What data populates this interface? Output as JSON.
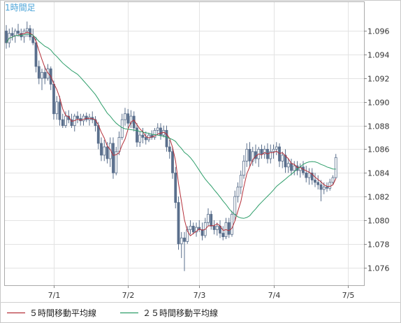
{
  "chart_data": {
    "type": "candlestick",
    "title": "1時間足",
    "xlabel": "",
    "ylabel": "",
    "ylim": [
      1.0745,
      1.0985
    ],
    "grid": true,
    "legend_position": "bottom-left",
    "x_ticks": [
      "7/1",
      "7/2",
      "7/3",
      "7/4",
      "7/5"
    ],
    "y_ticks": [
      "1.076",
      "1.078",
      "1.080",
      "1.082",
      "1.084",
      "1.086",
      "1.088",
      "1.090",
      "1.092",
      "1.094",
      "1.096"
    ],
    "y_tick_values": [
      1.076,
      1.078,
      1.08,
      1.082,
      1.084,
      1.086,
      1.088,
      1.09,
      1.092,
      1.094,
      1.096
    ],
    "candles": [
      [
        1.096,
        1.0965,
        1.0945,
        1.095
      ],
      [
        1.095,
        1.0962,
        1.0946,
        1.0958
      ],
      [
        1.0958,
        1.0963,
        1.0952,
        1.0956
      ],
      [
        1.0956,
        1.0962,
        1.095,
        1.096
      ],
      [
        1.096,
        1.0966,
        1.0955,
        1.0958
      ],
      [
        1.0958,
        1.0962,
        1.0952,
        1.0955
      ],
      [
        1.0955,
        1.0962,
        1.095,
        1.096
      ],
      [
        1.096,
        1.0968,
        1.0955,
        1.0962
      ],
      [
        1.0962,
        1.0965,
        1.0952,
        1.0955
      ],
      [
        1.0955,
        1.0962,
        1.0948,
        1.095
      ],
      [
        1.095,
        1.0955,
        1.0925,
        1.093
      ],
      [
        1.093,
        1.0935,
        1.0915,
        1.092
      ],
      [
        1.092,
        1.0928,
        1.091,
        1.0925
      ],
      [
        1.0925,
        1.093,
        1.0915,
        1.092
      ],
      [
        1.092,
        1.0932,
        1.0918,
        1.0928
      ],
      [
        1.0928,
        1.093,
        1.091,
        1.0915
      ],
      [
        1.0915,
        1.0918,
        1.0885,
        1.089
      ],
      [
        1.089,
        1.0905,
        1.0885,
        1.09
      ],
      [
        1.09,
        1.0905,
        1.088,
        1.0885
      ],
      [
        1.0885,
        1.089,
        1.0878,
        1.088
      ],
      [
        1.088,
        1.0892,
        1.0878,
        1.0888
      ],
      [
        1.0888,
        1.0893,
        1.0882,
        1.0885
      ],
      [
        1.0885,
        1.089,
        1.0878,
        1.088
      ],
      [
        1.088,
        1.089,
        1.0875,
        1.0888
      ],
      [
        1.0888,
        1.0892,
        1.0882,
        1.0886
      ],
      [
        1.0886,
        1.089,
        1.088,
        1.0884
      ],
      [
        1.0884,
        1.089,
        1.088,
        1.0888
      ],
      [
        1.0888,
        1.0891,
        1.0883,
        1.0885
      ],
      [
        1.0885,
        1.089,
        1.088,
        1.0887
      ],
      [
        1.0887,
        1.0892,
        1.0882,
        1.0885
      ],
      [
        1.0885,
        1.0888,
        1.0875,
        1.088
      ],
      [
        1.088,
        1.0883,
        1.086,
        1.0865
      ],
      [
        1.0865,
        1.087,
        1.085,
        1.0855
      ],
      [
        1.0855,
        1.0868,
        1.085,
        1.0862
      ],
      [
        1.0862,
        1.0866,
        1.0848,
        1.0852
      ],
      [
        1.0852,
        1.087,
        1.0845,
        1.0865
      ],
      [
        1.0865,
        1.087,
        1.0835,
        1.084
      ],
      [
        1.084,
        1.0862,
        1.0838,
        1.0858
      ],
      [
        1.0858,
        1.0875,
        1.0855,
        1.087
      ],
      [
        1.087,
        1.089,
        1.0868,
        1.0885
      ],
      [
        1.0885,
        1.0895,
        1.088,
        1.089
      ],
      [
        1.089,
        1.0894,
        1.0878,
        1.0882
      ],
      [
        1.0882,
        1.0893,
        1.0878,
        1.0888
      ],
      [
        1.0888,
        1.0892,
        1.0875,
        1.0878
      ],
      [
        1.0878,
        1.0882,
        1.0862,
        1.0866
      ],
      [
        1.0866,
        1.0875,
        1.0862,
        1.0872
      ],
      [
        1.0872,
        1.0878,
        1.0865,
        1.087
      ],
      [
        1.087,
        1.0875,
        1.0864,
        1.0868
      ],
      [
        1.0868,
        1.0874,
        1.0866,
        1.0872
      ],
      [
        1.0872,
        1.0876,
        1.0868,
        1.087
      ],
      [
        1.087,
        1.0878,
        1.0868,
        1.0876
      ],
      [
        1.0876,
        1.0882,
        1.0872,
        1.0878
      ],
      [
        1.0878,
        1.0882,
        1.0868,
        1.0872
      ],
      [
        1.0872,
        1.088,
        1.087,
        1.0876
      ],
      [
        1.0876,
        1.088,
        1.0858,
        1.0862
      ],
      [
        1.0862,
        1.0868,
        1.0852,
        1.0858
      ],
      [
        1.0858,
        1.0862,
        1.0835,
        1.084
      ],
      [
        1.084,
        1.0845,
        1.081,
        1.0815
      ],
      [
        1.0815,
        1.082,
        1.0775,
        1.078
      ],
      [
        1.078,
        1.079,
        1.0768,
        1.0785
      ],
      [
        1.0785,
        1.079,
        1.0757,
        1.0782
      ],
      [
        1.0782,
        1.0795,
        1.078,
        1.0792
      ],
      [
        1.0792,
        1.08,
        1.0788,
        1.0795
      ],
      [
        1.0795,
        1.0798,
        1.0788,
        1.079
      ],
      [
        1.079,
        1.0798,
        1.0786,
        1.0794
      ],
      [
        1.0794,
        1.08,
        1.079,
        1.0792
      ],
      [
        1.0792,
        1.0798,
        1.0783,
        1.0787
      ],
      [
        1.0787,
        1.0802,
        1.0785,
        1.0798
      ],
      [
        1.0798,
        1.081,
        1.0795,
        1.0805
      ],
      [
        1.0805,
        1.0808,
        1.0792,
        1.0795
      ],
      [
        1.0795,
        1.08,
        1.0788,
        1.0792
      ],
      [
        1.0792,
        1.0798,
        1.0787,
        1.0795
      ],
      [
        1.0795,
        1.08,
        1.0785,
        1.0789
      ],
      [
        1.0789,
        1.0795,
        1.0783,
        1.0786
      ],
      [
        1.0786,
        1.0802,
        1.0784,
        1.0798
      ],
      [
        1.0798,
        1.0802,
        1.0785,
        1.0788
      ],
      [
        1.0788,
        1.0808,
        1.0786,
        1.0805
      ],
      [
        1.0805,
        1.0825,
        1.08,
        1.082
      ],
      [
        1.082,
        1.0832,
        1.0815,
        1.0828
      ],
      [
        1.0828,
        1.0842,
        1.0822,
        1.0838
      ],
      [
        1.0838,
        1.0855,
        1.0835,
        1.085
      ],
      [
        1.085,
        1.0865,
        1.0845,
        1.086
      ],
      [
        1.086,
        1.0866,
        1.0845,
        1.085
      ],
      [
        1.085,
        1.0862,
        1.0846,
        1.0858
      ],
      [
        1.0858,
        1.0864,
        1.0848,
        1.0852
      ],
      [
        1.0852,
        1.0862,
        1.0845,
        1.086
      ],
      [
        1.086,
        1.0864,
        1.0852,
        1.0856
      ],
      [
        1.0856,
        1.0863,
        1.0852,
        1.086
      ],
      [
        1.086,
        1.0865,
        1.0848,
        1.0852
      ],
      [
        1.0852,
        1.0864,
        1.0848,
        1.0858
      ],
      [
        1.0858,
        1.0864,
        1.0852,
        1.086
      ],
      [
        1.086,
        1.0866,
        1.0855,
        1.0862
      ],
      [
        1.0862,
        1.0865,
        1.0845,
        1.085
      ],
      [
        1.085,
        1.0858,
        1.0844,
        1.0855
      ],
      [
        1.0855,
        1.086,
        1.084,
        1.0845
      ],
      [
        1.0845,
        1.0852,
        1.084,
        1.0848
      ],
      [
        1.0848,
        1.0852,
        1.0838,
        1.0842
      ],
      [
        1.0842,
        1.085,
        1.0838,
        1.0846
      ],
      [
        1.0846,
        1.085,
        1.0838,
        1.0842
      ],
      [
        1.0842,
        1.0848,
        1.0836,
        1.0845
      ],
      [
        1.0845,
        1.085,
        1.0838,
        1.084
      ],
      [
        1.084,
        1.0846,
        1.0832,
        1.0836
      ],
      [
        1.0836,
        1.0844,
        1.083,
        1.084
      ],
      [
        1.084,
        1.0844,
        1.083,
        1.0834
      ],
      [
        1.0834,
        1.084,
        1.0828,
        1.0832
      ],
      [
        1.0832,
        1.0838,
        1.0826,
        1.083
      ],
      [
        1.083,
        1.0834,
        1.0816,
        1.0826
      ],
      [
        1.0826,
        1.0832,
        1.0822,
        1.0828
      ],
      [
        1.0828,
        1.0832,
        1.0824,
        1.0827
      ],
      [
        1.0827,
        1.0835,
        1.0825,
        1.0832
      ],
      [
        1.0832,
        1.0838,
        1.083,
        1.0836
      ],
      [
        1.0836,
        1.0856,
        1.0835,
        1.0853
      ]
    ],
    "series": [
      {
        "name": "５時間移動平均線",
        "color": "#b5303a",
        "period": 5
      },
      {
        "name": "２５時間移動平均線",
        "color": "#2e9e6a",
        "period": 25
      }
    ],
    "candle_up_color": "#ffffff",
    "candle_down_color": "#5a6f8c",
    "title_color": "#4aa3d8"
  }
}
